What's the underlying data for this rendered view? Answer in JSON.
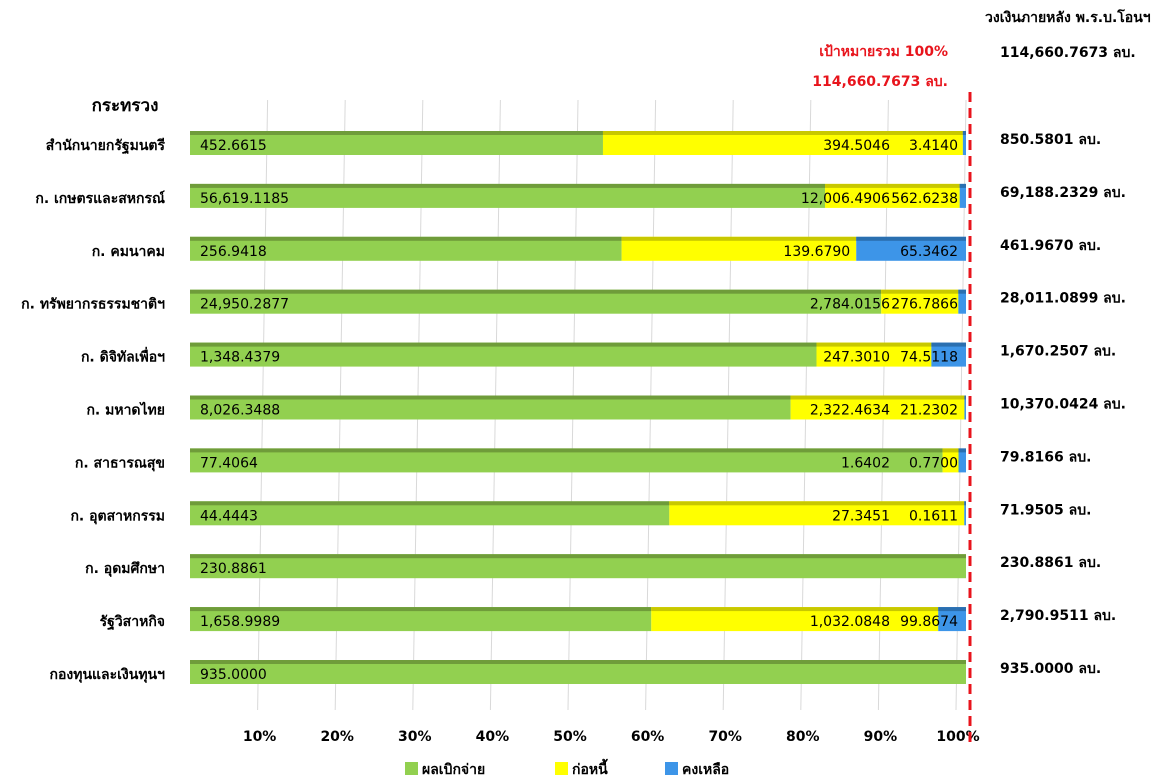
{
  "chart_data": {
    "type": "stacked_bar_100",
    "axis_title": "กระทรวง",
    "header": "วงเงินภายหลัง พ.ร.บ.โอนฯ",
    "header_total": "114,660.7673 ลบ.",
    "target_label": "เป้าหมายรวม 100%",
    "target_total": "114,660.7673 ลบ.",
    "categories": [
      "สำนักนายกรัฐมนตรี",
      "ก. เกษตรและสหกรณ์",
      "ก. คมนาคม",
      "ก. ทรัพยากรธรรมชาติฯ",
      "ก. ดิจิทัลเพื่อฯ",
      "ก. มหาดไทย",
      "ก. สาธารณสุข",
      "ก. อุตสาหกรรม",
      "ก. อุดมศึกษา",
      "รัฐวิสาหกิจ",
      "กองทุนและเงินทุนฯ"
    ],
    "series": [
      {
        "name": "ผลเบิกจ่าย",
        "color": "#92d050",
        "edge": "#6f9c3a",
        "values": [
          452.6615,
          56619.1185,
          256.9418,
          24950.2877,
          1348.4379,
          8026.3488,
          77.4064,
          44.4443,
          230.8861,
          1658.9989,
          935.0
        ],
        "value_labels": [
          "452.6615",
          "56,619.1185",
          "256.9418",
          "24,950.2877",
          "1,348.4379",
          "8,026.3488",
          "77.4064",
          "44.4443",
          "230.8861",
          "1,658.9989",
          "935.0000"
        ]
      },
      {
        "name": "ก่อหนี้",
        "color": "#ffff00",
        "edge": "#c8c800",
        "values": [
          394.5046,
          12006.4906,
          139.679,
          2784.0156,
          247.301,
          2322.4634,
          1.6402,
          27.3451,
          0,
          1032.0848,
          0
        ],
        "value_labels": [
          "394.5046",
          "12,006.4906",
          "139.6790",
          "2,784.0156",
          "247.3010",
          "2,322.4634",
          "1.6402",
          "27.3451",
          null,
          "1,032.0848",
          null
        ]
      },
      {
        "name": "คงเหลือ",
        "color": "#3d95e8",
        "edge": "#2a6fb0",
        "values": [
          3.414,
          562.6238,
          65.3462,
          276.7866,
          74.5118,
          21.2302,
          0.77,
          0.1611,
          0,
          99.8674,
          0
        ],
        "value_labels": [
          "3.4140",
          "562.6238",
          "65.3462",
          "276.7866",
          "74.5118",
          "21.2302",
          "0.7700",
          "0.1611",
          null,
          "99.8674",
          null
        ]
      }
    ],
    "totals": {
      "values": [
        850.5801,
        69188.2329,
        461.967,
        28011.0899,
        1670.2507,
        10370.0424,
        79.8166,
        71.9505,
        230.8861,
        2790.9511,
        935.0
      ],
      "value_labels": [
        "850.5801 ลบ.",
        "69,188.2329 ลบ.",
        "461.9670 ลบ.",
        "28,011.0899 ลบ.",
        "1,670.2507 ลบ.",
        "10,370.0424 ลบ.",
        "79.8166 ลบ.",
        "71.9505 ลบ.",
        "230.8861 ลบ.",
        "2,790.9511 ลบ.",
        "935.0000 ลบ."
      ]
    },
    "xlim": [
      0,
      100
    ],
    "xticks": [
      {
        "value": 10,
        "label": "10%"
      },
      {
        "value": 20,
        "label": "20%"
      },
      {
        "value": 30,
        "label": "30%"
      },
      {
        "value": 40,
        "label": "40%"
      },
      {
        "value": 50,
        "label": "50%"
      },
      {
        "value": 60,
        "label": "60%"
      },
      {
        "value": 70,
        "label": "70%"
      },
      {
        "value": 80,
        "label": "80%"
      },
      {
        "value": 90,
        "label": "90%"
      },
      {
        "value": 100,
        "label": "100%"
      }
    ],
    "target": 100,
    "target_color": "#e8141c",
    "grid": true
  }
}
